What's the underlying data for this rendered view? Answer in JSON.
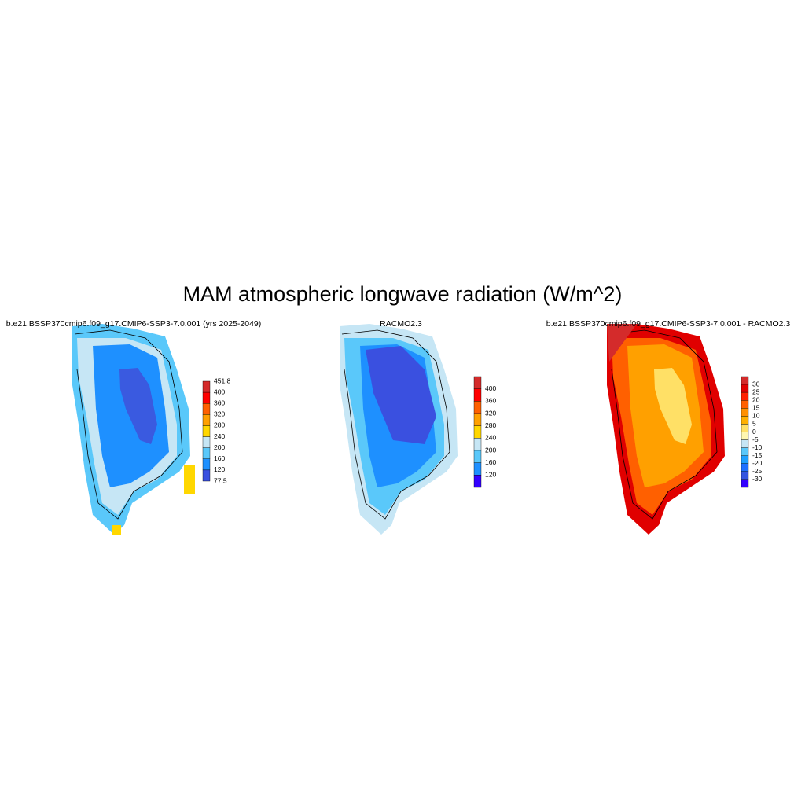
{
  "title": "MAM atmospheric longwave radiation (W/m^2)",
  "panels": [
    {
      "title": "b.e21.BSSP370cmip6.f09_g17.CMIP6-SSP3-7.0.001 (yrs 2025-2049)",
      "colorbar": {
        "labels": [
          "451.8",
          "400",
          "360",
          "320",
          "280",
          "240",
          "200",
          "160",
          "120",
          "77.5"
        ],
        "colors": [
          "#d42b2b",
          "#ff0000",
          "#ff6000",
          "#ffa000",
          "#ffd700",
          "#c6e6f5",
          "#5ac8fa",
          "#1e90ff",
          "#3a50e0"
        ]
      }
    },
    {
      "title": "RACMO2.3",
      "colorbar": {
        "labels": [
          "400",
          "360",
          "320",
          "280",
          "240",
          "200",
          "160",
          "120"
        ],
        "colors": [
          "#d42b2b",
          "#ff0000",
          "#ff6000",
          "#ffa000",
          "#ffd700",
          "#c6e6f5",
          "#5ac8fa",
          "#1e90ff",
          "#3300ff"
        ]
      }
    },
    {
      "title": "b.e21.BSSP370cmip6.f09_g17.CMIP6-SSP3-7.0.001 - RACMO2.3",
      "colorbar": {
        "labels": [
          "30",
          "25",
          "20",
          "15",
          "10",
          "5",
          "0",
          "-5",
          "-10",
          "-15",
          "-20",
          "-25",
          "-30"
        ],
        "colors": [
          "#d42b2b",
          "#e00000",
          "#ff2000",
          "#ff6000",
          "#ff9000",
          "#ffb000",
          "#ffe066",
          "#fff7b0",
          "#c6e6f5",
          "#5ac8fa",
          "#1ea0ff",
          "#1e70ff",
          "#3355e0",
          "#3300ff"
        ]
      }
    }
  ]
}
